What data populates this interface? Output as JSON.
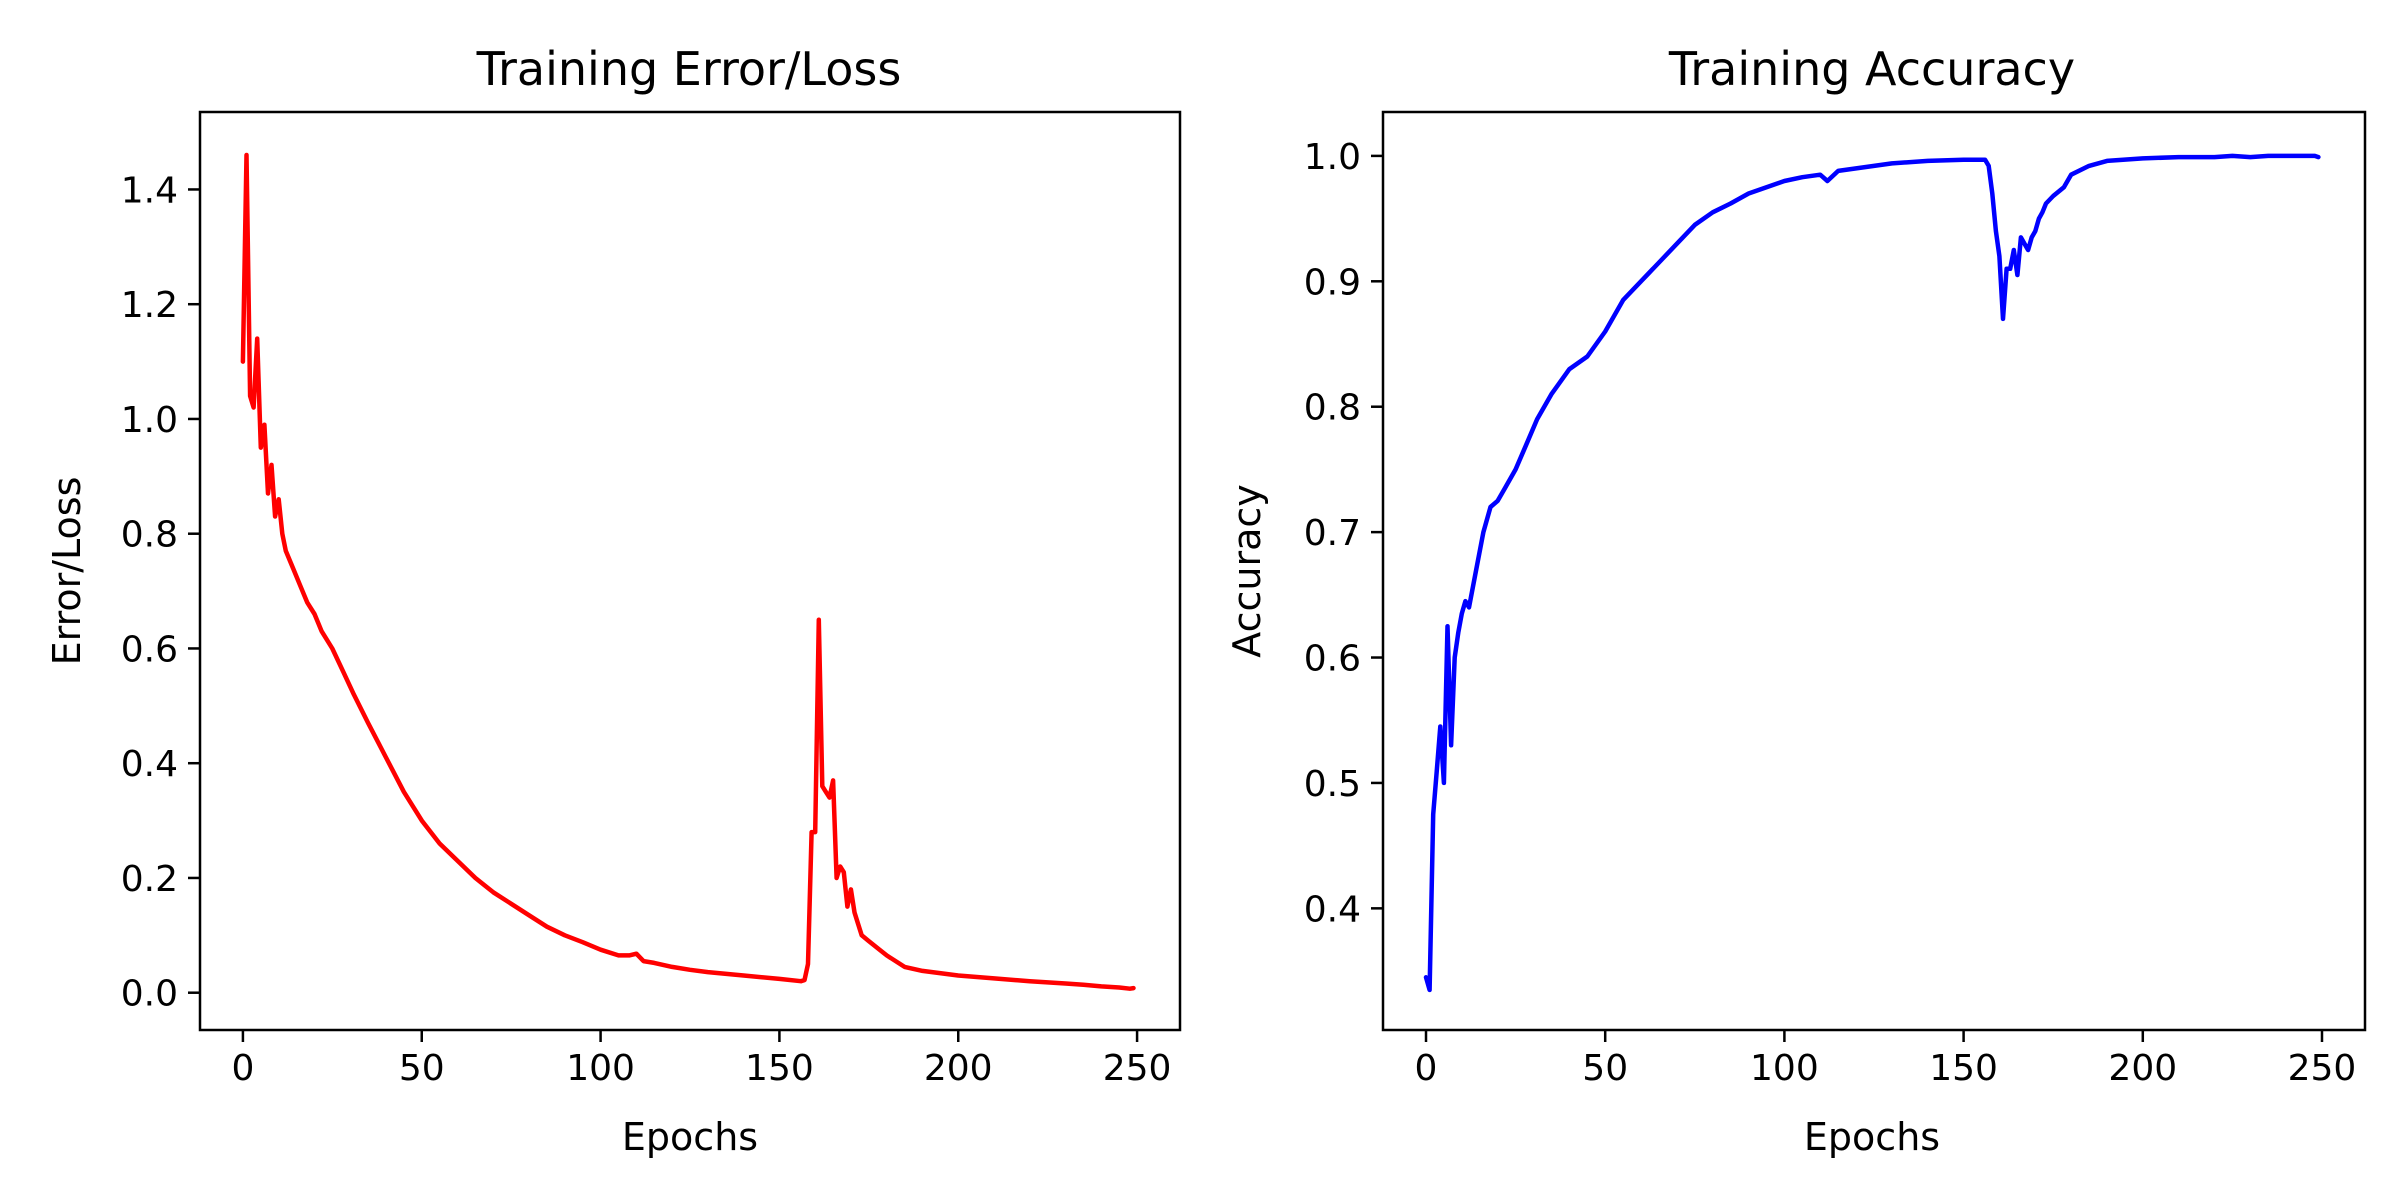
{
  "chart_data": [
    {
      "type": "line",
      "title": "Training Error/Loss",
      "xlabel": "Epochs",
      "ylabel": "Error/Loss",
      "xlim": [
        -12,
        262
      ],
      "ylim": [
        -0.065,
        1.535
      ],
      "xticks": [
        0,
        50,
        100,
        150,
        200,
        250
      ],
      "yticks": [
        0.0,
        0.2,
        0.4,
        0.6,
        0.8,
        1.0,
        1.2,
        1.4
      ],
      "ytick_labels": [
        "0.0",
        "0.2",
        "0.4",
        "0.6",
        "0.8",
        "1.0",
        "1.2",
        "1.4"
      ],
      "grid": false,
      "series": [
        {
          "color": "#ff0000",
          "x": [
            0,
            1,
            2,
            3,
            4,
            5,
            6,
            7,
            8,
            9,
            10,
            11,
            12,
            14,
            16,
            18,
            20,
            22,
            25,
            28,
            31,
            35,
            40,
            45,
            50,
            55,
            60,
            65,
            70,
            75,
            80,
            85,
            90,
            95,
            100,
            105,
            108,
            110,
            112,
            115,
            120,
            125,
            130,
            140,
            150,
            156,
            157,
            158,
            159,
            160,
            161,
            162,
            163,
            164,
            165,
            166,
            167,
            168,
            169,
            170,
            171,
            172,
            173,
            175,
            178,
            180,
            185,
            190,
            200,
            210,
            220,
            225,
            230,
            235,
            240,
            245,
            248,
            249
          ],
          "y": [
            1.1,
            1.46,
            1.04,
            1.02,
            1.14,
            0.95,
            0.99,
            0.87,
            0.92,
            0.83,
            0.86,
            0.8,
            0.77,
            0.74,
            0.71,
            0.68,
            0.66,
            0.63,
            0.6,
            0.56,
            0.52,
            0.47,
            0.41,
            0.35,
            0.3,
            0.26,
            0.23,
            0.2,
            0.175,
            0.155,
            0.135,
            0.115,
            0.1,
            0.088,
            0.075,
            0.065,
            0.065,
            0.068,
            0.055,
            0.052,
            0.045,
            0.04,
            0.036,
            0.03,
            0.024,
            0.02,
            0.022,
            0.05,
            0.28,
            0.28,
            0.65,
            0.36,
            0.35,
            0.34,
            0.37,
            0.2,
            0.22,
            0.21,
            0.15,
            0.18,
            0.14,
            0.12,
            0.1,
            0.09,
            0.075,
            0.065,
            0.045,
            0.038,
            0.03,
            0.025,
            0.02,
            0.018,
            0.016,
            0.014,
            0.011,
            0.009,
            0.007,
            0.008
          ]
        }
      ]
    },
    {
      "type": "line",
      "title": "Training Accuracy",
      "xlabel": "Epochs",
      "ylabel": "Accuracy",
      "xlim": [
        -12,
        262
      ],
      "ylim": [
        0.303,
        1.035
      ],
      "xticks": [
        0,
        50,
        100,
        150,
        200,
        250
      ],
      "yticks": [
        0.4,
        0.5,
        0.6,
        0.7,
        0.8,
        0.9,
        1.0
      ],
      "ytick_labels": [
        "0.4",
        "0.5",
        "0.6",
        "0.7",
        "0.8",
        "0.9",
        "1.0"
      ],
      "grid": false,
      "series": [
        {
          "color": "#0000ff",
          "x": [
            0,
            1,
            2,
            3,
            4,
            5,
            6,
            7,
            8,
            9,
            10,
            11,
            12,
            14,
            16,
            18,
            20,
            22,
            25,
            28,
            31,
            35,
            40,
            45,
            50,
            55,
            60,
            65,
            70,
            75,
            80,
            85,
            90,
            95,
            100,
            105,
            110,
            112,
            115,
            120,
            125,
            130,
            140,
            150,
            156,
            157,
            158,
            159,
            160,
            161,
            162,
            163,
            164,
            165,
            166,
            167,
            168,
            169,
            170,
            171,
            172,
            173,
            175,
            178,
            180,
            185,
            190,
            200,
            210,
            220,
            225,
            230,
            235,
            240,
            245,
            248,
            249
          ],
          "y": [
            0.345,
            0.335,
            0.475,
            0.51,
            0.545,
            0.5,
            0.625,
            0.53,
            0.6,
            0.62,
            0.635,
            0.645,
            0.64,
            0.67,
            0.7,
            0.72,
            0.725,
            0.735,
            0.75,
            0.77,
            0.79,
            0.81,
            0.83,
            0.84,
            0.86,
            0.885,
            0.9,
            0.915,
            0.93,
            0.945,
            0.955,
            0.962,
            0.97,
            0.975,
            0.98,
            0.983,
            0.985,
            0.98,
            0.988,
            0.99,
            0.992,
            0.994,
            0.996,
            0.997,
            0.997,
            0.992,
            0.97,
            0.94,
            0.92,
            0.87,
            0.91,
            0.91,
            0.925,
            0.905,
            0.935,
            0.93,
            0.925,
            0.935,
            0.94,
            0.95,
            0.955,
            0.962,
            0.968,
            0.975,
            0.985,
            0.992,
            0.996,
            0.998,
            0.999,
            0.999,
            1.0,
            0.999,
            1.0,
            1.0,
            1.0,
            1.0,
            0.999
          ]
        }
      ]
    }
  ]
}
